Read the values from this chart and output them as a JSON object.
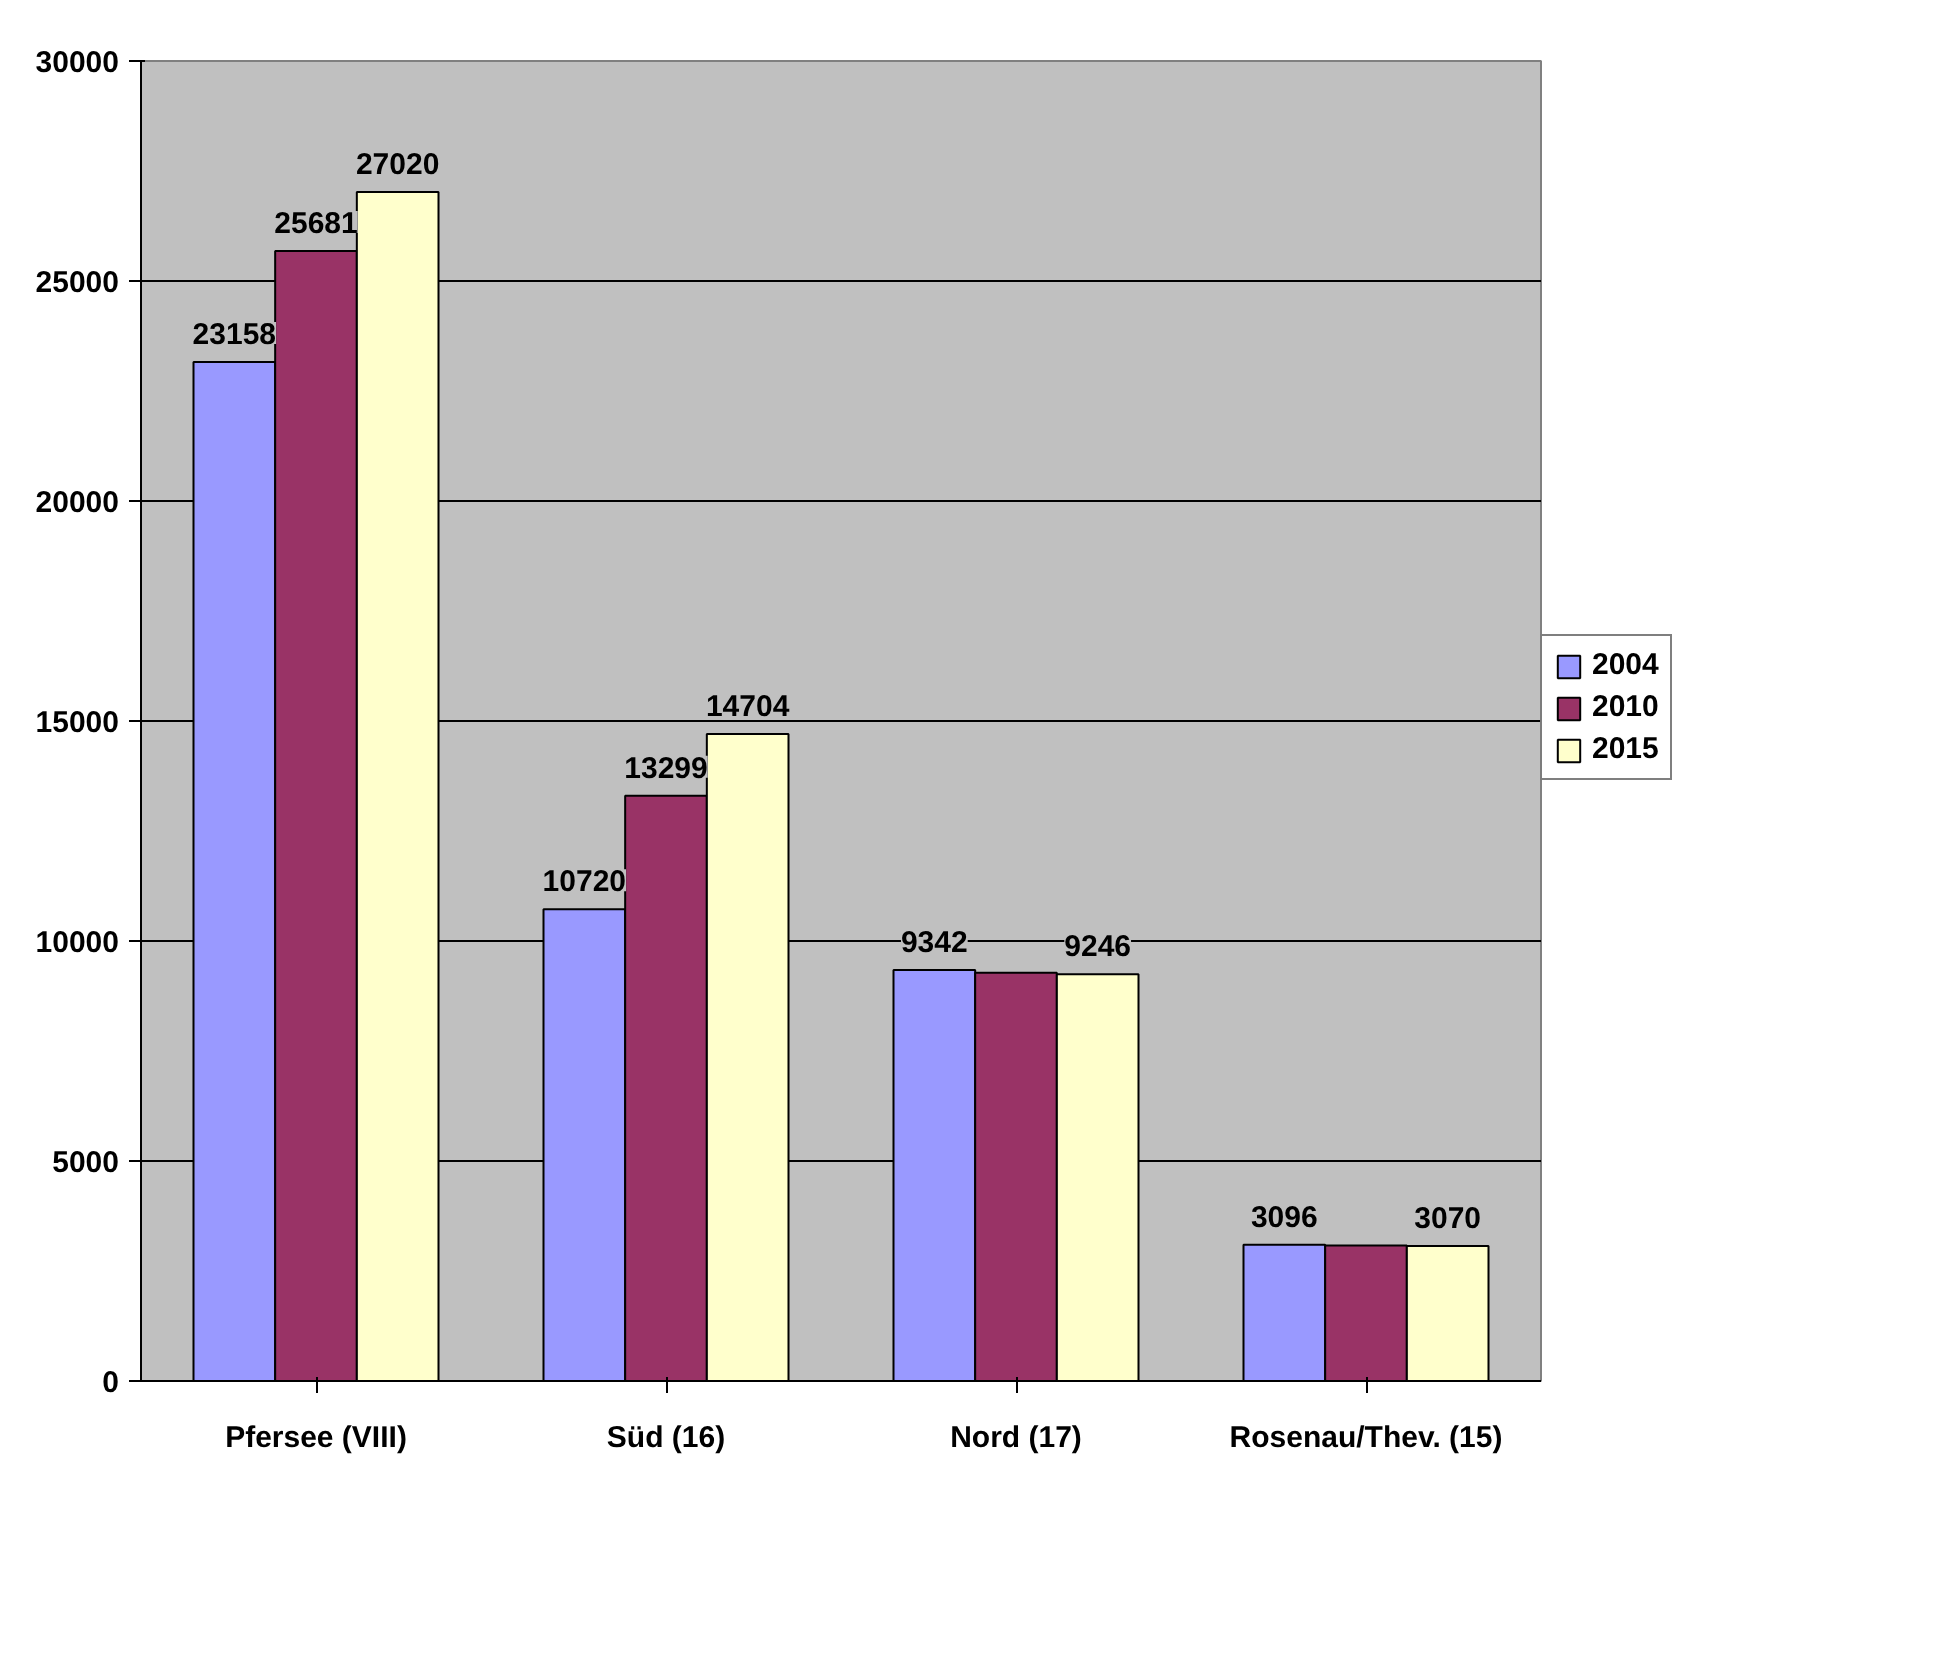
{
  "chart_data": {
    "type": "bar",
    "categories": [
      "Pfersee (VIII)",
      "Süd (16)",
      "Nord (17)",
      "Rosenau/Thev. (15)"
    ],
    "series": [
      {
        "name": "2004",
        "color": "#9999ff",
        "values": [
          23158,
          10720,
          9342,
          3096
        ],
        "value_labels": [
          "23158",
          "10720",
          "9342",
          "3096"
        ]
      },
      {
        "name": "2010",
        "color": "#993366",
        "values": [
          25681,
          13299,
          9280,
          3080
        ],
        "value_labels": [
          "25681",
          "13299",
          null,
          null
        ]
      },
      {
        "name": "2015",
        "color": "#ffffcc",
        "values": [
          27020,
          14704,
          9246,
          3070
        ],
        "value_labels": [
          "27020",
          "14704",
          "9246",
          "3070"
        ]
      }
    ],
    "ylim": [
      0,
      30000
    ],
    "yticks": [
      0,
      5000,
      10000,
      15000,
      20000,
      25000,
      30000
    ],
    "grid": "y",
    "legend": "right"
  }
}
